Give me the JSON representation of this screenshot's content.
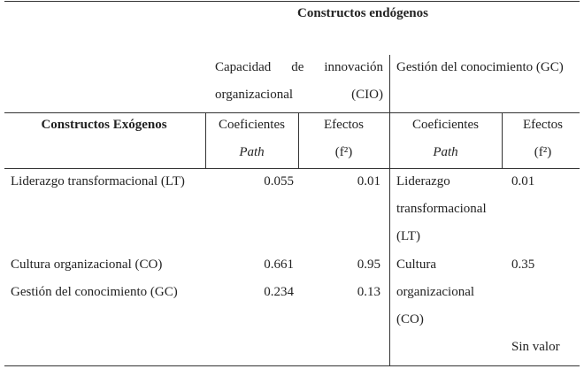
{
  "table": {
    "title": "Constructos endógenos",
    "groups": [
      "Capacidad de innovación organizacional (CIO)",
      "Gestión del conocimiento (GC)"
    ],
    "row_header": "Constructos Exógenos",
    "columns": [
      {
        "line1": "Coeficientes",
        "line2": "Path"
      },
      {
        "line1": "Efectos",
        "line2": "(f²)"
      },
      {
        "line1": "Coeficientes",
        "line2": "Path"
      },
      {
        "line1": "Efectos",
        "line2": "(f²)"
      }
    ],
    "rows": [
      [
        "Liderazgo transformacional (LT)",
        "0.055",
        "0.01",
        "Liderazgo transformacional (LT)",
        "0.01"
      ],
      [
        "Cultura organizacional (CO)",
        "0.661",
        "0.95",
        "Cultura organizacional (CO)",
        "0.35"
      ],
      [
        "Gestión del conocimiento (GC)",
        "0.234",
        "0.13"
      ]
    ],
    "note": "Sin valor"
  }
}
